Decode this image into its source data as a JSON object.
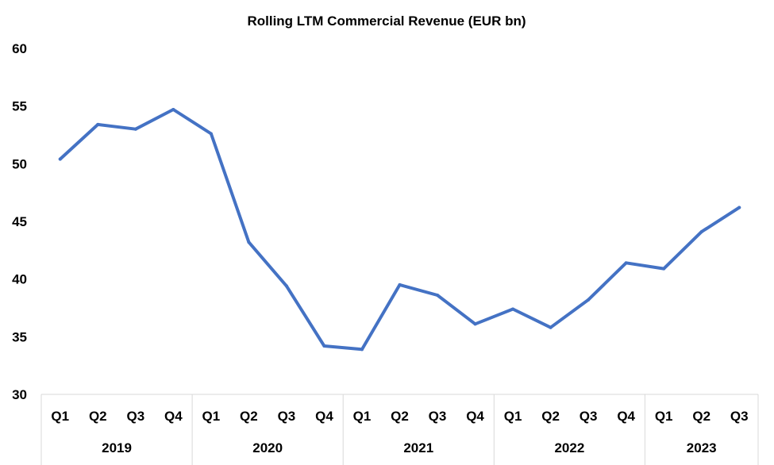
{
  "chart_data": {
    "type": "line",
    "title": "Rolling LTM Commercial Revenue (EUR bn)",
    "xlabel": "",
    "ylabel": "",
    "ylim": [
      30,
      60
    ],
    "yticks": [
      30,
      35,
      40,
      45,
      50,
      55,
      60
    ],
    "categories": [
      "Q1 2019",
      "Q2 2019",
      "Q3 2019",
      "Q4 2019",
      "Q1 2020",
      "Q2 2020",
      "Q3 2020",
      "Q4 2020",
      "Q1 2021",
      "Q2 2021",
      "Q3 2021",
      "Q4 2021",
      "Q1 2022",
      "Q2 2022",
      "Q3 2022",
      "Q4 2022",
      "Q1 2023",
      "Q2 2023",
      "Q3 2023"
    ],
    "quarter_labels": [
      "Q1",
      "Q2",
      "Q3",
      "Q4",
      "Q1",
      "Q2",
      "Q3",
      "Q4",
      "Q1",
      "Q2",
      "Q3",
      "Q4",
      "Q1",
      "Q2",
      "Q3",
      "Q4",
      "Q1",
      "Q2",
      "Q3"
    ],
    "year_groups": [
      {
        "label": "2019",
        "count": 4
      },
      {
        "label": "2020",
        "count": 4
      },
      {
        "label": "2021",
        "count": 4
      },
      {
        "label": "2022",
        "count": 4
      },
      {
        "label": "2023",
        "count": 3
      }
    ],
    "values": [
      50.4,
      53.4,
      53.0,
      54.7,
      52.6,
      43.2,
      39.4,
      34.2,
      33.9,
      39.5,
      38.6,
      36.1,
      37.4,
      35.8,
      38.2,
      41.4,
      40.9,
      44.1,
      46.2
    ],
    "line_color": "#4472C4",
    "grid": false,
    "legend": "none"
  }
}
